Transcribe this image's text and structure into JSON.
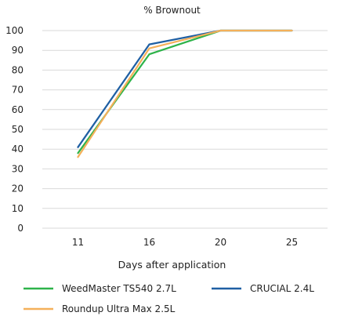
{
  "chart_data": {
    "type": "line",
    "title": "% Brownout",
    "xlabel": "Days after application",
    "ylabel": "",
    "categories": [
      "11",
      "16",
      "20",
      "25"
    ],
    "ylim": [
      0,
      100
    ],
    "yticks": [
      0,
      10,
      20,
      30,
      40,
      50,
      60,
      70,
      80,
      90,
      100
    ],
    "grid": "horizontal",
    "legend_position": "bottom",
    "series": [
      {
        "name": "WeedMaster TS540 2.7L",
        "color": "#2eb34a",
        "values": [
          38,
          88,
          100,
          100
        ]
      },
      {
        "name": "CRUCIAL 2.4L",
        "color": "#1f5fa3",
        "values": [
          41,
          93,
          100,
          100
        ]
      },
      {
        "name": "Roundup Ultra Max 2.5L",
        "color": "#f4b05a",
        "values": [
          36,
          91,
          100,
          100
        ]
      }
    ]
  }
}
